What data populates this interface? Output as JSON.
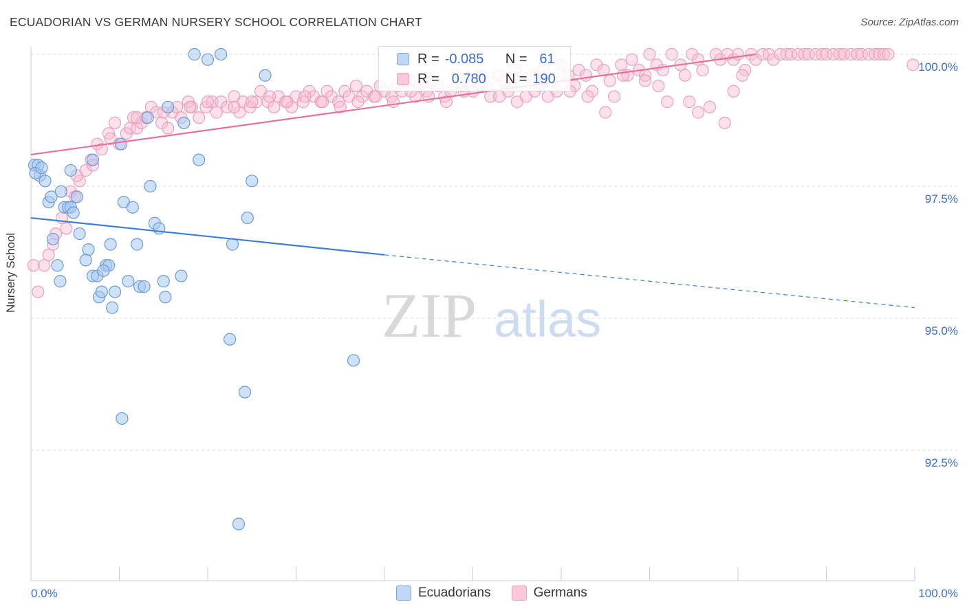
{
  "title": "ECUADORIAN VS GERMAN NURSERY SCHOOL CORRELATION CHART",
  "source": "Source: ZipAtlas.com",
  "watermark": {
    "zip": "ZIP",
    "atlas": "atlas"
  },
  "legend": {
    "r_label": "R =",
    "n_label": "N =",
    "series": [
      {
        "name": "Ecuadorians",
        "r": "-0.085",
        "n": "61",
        "fill": "#a8c8f0",
        "stroke": "#6a9ad8"
      },
      {
        "name": "Germans",
        "r": "0.780",
        "n": "190",
        "fill": "#f8bcd0",
        "stroke": "#e890b0"
      }
    ]
  },
  "chart_data": {
    "type": "scatter",
    "title": "ECUADORIAN VS GERMAN NURSERY SCHOOL CORRELATION CHART",
    "xlabel": "",
    "ylabel": "Nursery School",
    "xlim": [
      0,
      100
    ],
    "ylim": [
      90.2,
      100.5
    ],
    "x_tick_labels": [
      "0.0%",
      "100.0%"
    ],
    "y_ticks": [
      92.5,
      95.0,
      97.5,
      100.0
    ],
    "y_tick_labels": [
      "92.5%",
      "95.0%",
      "97.5%",
      "100.0%"
    ],
    "grid": "horizontal dashed",
    "colors": {
      "ecuadorians": "#3a7fd5",
      "germans": "#e8709a",
      "axis_text": "#3a6fcc"
    },
    "series": [
      {
        "name": "Ecuadorians",
        "trend": {
          "x0": 0,
          "y0": 96.9,
          "x1": 40,
          "y1": 96.2,
          "dashed_to_x": 100,
          "dashed_to_y": 95.2
        },
        "points": [
          [
            0.4,
            97.9
          ],
          [
            0.8,
            97.9
          ],
          [
            1.0,
            97.7
          ],
          [
            1.6,
            97.6
          ],
          [
            2.0,
            97.2
          ],
          [
            2.3,
            97.3
          ],
          [
            3.4,
            97.4
          ],
          [
            3.8,
            97.1
          ],
          [
            4.2,
            97.1
          ],
          [
            5.2,
            97.3
          ],
          [
            2.5,
            96.5
          ],
          [
            3.0,
            96.0
          ],
          [
            3.3,
            95.7
          ],
          [
            4.5,
            97.1
          ],
          [
            4.8,
            97.0
          ],
          [
            5.5,
            96.6
          ],
          [
            6.5,
            96.3
          ],
          [
            7.0,
            95.8
          ],
          [
            7.5,
            95.8
          ],
          [
            7.7,
            95.4
          ],
          [
            8.0,
            95.5
          ],
          [
            8.5,
            96.0
          ],
          [
            8.8,
            96.0
          ],
          [
            9.0,
            96.4
          ],
          [
            9.2,
            95.2
          ],
          [
            9.5,
            95.5
          ],
          [
            10.2,
            98.3
          ],
          [
            10.5,
            97.2
          ],
          [
            11.0,
            95.7
          ],
          [
            11.5,
            97.1
          ],
          [
            12.0,
            96.4
          ],
          [
            12.3,
            95.6
          ],
          [
            12.8,
            95.6
          ],
          [
            13.5,
            97.5
          ],
          [
            14.0,
            96.8
          ],
          [
            14.5,
            96.7
          ],
          [
            15.0,
            95.7
          ],
          [
            15.2,
            95.4
          ],
          [
            15.5,
            99.0
          ],
          [
            17.0,
            95.8
          ],
          [
            17.3,
            98.7
          ],
          [
            18.5,
            100.0
          ],
          [
            19.0,
            98.0
          ],
          [
            20.0,
            99.9
          ],
          [
            21.5,
            100.0
          ],
          [
            22.5,
            94.6
          ],
          [
            22.8,
            96.4
          ],
          [
            23.5,
            91.1
          ],
          [
            24.2,
            93.6
          ],
          [
            24.5,
            96.9
          ],
          [
            25.0,
            97.6
          ],
          [
            26.5,
            99.6
          ],
          [
            36.5,
            94.2
          ],
          [
            10.3,
            93.1
          ],
          [
            6.2,
            96.1
          ],
          [
            4.5,
            97.8
          ],
          [
            8.2,
            95.9
          ],
          [
            13.2,
            98.8
          ],
          [
            0.5,
            97.75
          ],
          [
            1.2,
            97.85
          ],
          [
            7.0,
            98.0
          ]
        ]
      },
      {
        "name": "Germans",
        "trend": {
          "x0": 0,
          "y0": 98.1,
          "x1": 82,
          "y1": 100.0
        },
        "points": [
          [
            0.3,
            96.0
          ],
          [
            0.8,
            95.5
          ],
          [
            1.5,
            96.0
          ],
          [
            2.0,
            96.2
          ],
          [
            2.5,
            96.4
          ],
          [
            2.8,
            96.6
          ],
          [
            3.5,
            96.9
          ],
          [
            4.0,
            96.7
          ],
          [
            4.5,
            97.4
          ],
          [
            5.0,
            97.3
          ],
          [
            5.5,
            97.6
          ],
          [
            5.2,
            97.7
          ],
          [
            6.2,
            97.8
          ],
          [
            6.8,
            98.0
          ],
          [
            7.0,
            97.9
          ],
          [
            7.5,
            98.3
          ],
          [
            8.0,
            98.2
          ],
          [
            8.8,
            98.5
          ],
          [
            9.0,
            98.4
          ],
          [
            9.5,
            98.7
          ],
          [
            10.0,
            98.3
          ],
          [
            10.8,
            98.5
          ],
          [
            11.2,
            98.6
          ],
          [
            11.6,
            98.8
          ],
          [
            12.0,
            98.6
          ],
          [
            12.5,
            98.7
          ],
          [
            13.0,
            98.8
          ],
          [
            13.6,
            99.0
          ],
          [
            14.2,
            98.9
          ],
          [
            14.8,
            98.7
          ],
          [
            15.5,
            98.6
          ],
          [
            16.0,
            98.9
          ],
          [
            16.5,
            99.0
          ],
          [
            17.0,
            98.8
          ],
          [
            17.8,
            99.1
          ],
          [
            18.2,
            99.0
          ],
          [
            19.0,
            98.8
          ],
          [
            19.8,
            99.0
          ],
          [
            20.5,
            99.1
          ],
          [
            21.0,
            98.9
          ],
          [
            21.5,
            99.1
          ],
          [
            22.2,
            99.0
          ],
          [
            23.0,
            99.2
          ],
          [
            23.6,
            98.9
          ],
          [
            24.0,
            99.1
          ],
          [
            24.8,
            99.0
          ],
          [
            25.5,
            99.1
          ],
          [
            26.0,
            99.3
          ],
          [
            26.8,
            99.1
          ],
          [
            27.5,
            99.0
          ],
          [
            28.0,
            99.2
          ],
          [
            28.8,
            99.1
          ],
          [
            29.5,
            99.0
          ],
          [
            30.0,
            99.2
          ],
          [
            30.8,
            99.1
          ],
          [
            31.5,
            99.3
          ],
          [
            32.0,
            99.2
          ],
          [
            32.8,
            99.1
          ],
          [
            33.5,
            99.3
          ],
          [
            34.0,
            99.2
          ],
          [
            34.8,
            99.1
          ],
          [
            35.5,
            99.3
          ],
          [
            36.0,
            99.2
          ],
          [
            36.8,
            99.4
          ],
          [
            37.5,
            99.2
          ],
          [
            38.0,
            99.3
          ],
          [
            38.8,
            99.2
          ],
          [
            39.5,
            99.4
          ],
          [
            40.0,
            99.3
          ],
          [
            40.8,
            99.2
          ],
          [
            41.5,
            99.4
          ],
          [
            42.0,
            99.3
          ],
          [
            42.8,
            99.5
          ],
          [
            43.5,
            99.2
          ],
          [
            44.0,
            99.4
          ],
          [
            44.8,
            99.3
          ],
          [
            45.5,
            99.5
          ],
          [
            46.0,
            99.4
          ],
          [
            46.8,
            99.2
          ],
          [
            47.5,
            99.3
          ],
          [
            48.0,
            99.6
          ],
          [
            48.8,
            99.4
          ],
          [
            49.5,
            99.5
          ],
          [
            50.0,
            99.3
          ],
          [
            50.8,
            99.6
          ],
          [
            51.5,
            99.4
          ],
          [
            52.0,
            99.2
          ],
          [
            52.8,
            99.6
          ],
          [
            53.5,
            99.5
          ],
          [
            54.0,
            99.3
          ],
          [
            54.8,
            99.7
          ],
          [
            55.5,
            99.5
          ],
          [
            56.0,
            99.2
          ],
          [
            56.8,
            99.6
          ],
          [
            57.5,
            99.4
          ],
          [
            58.0,
            99.7
          ],
          [
            58.8,
            99.5
          ],
          [
            59.5,
            99.3
          ],
          [
            60.0,
            99.8
          ],
          [
            60.8,
            99.6
          ],
          [
            61.5,
            99.4
          ],
          [
            62.0,
            99.7
          ],
          [
            62.8,
            99.6
          ],
          [
            63.5,
            99.3
          ],
          [
            64.0,
            99.8
          ],
          [
            64.8,
            99.7
          ],
          [
            65.5,
            99.5
          ],
          [
            66.0,
            99.2
          ],
          [
            66.8,
            99.8
          ],
          [
            67.5,
            99.6
          ],
          [
            68.0,
            99.9
          ],
          [
            68.8,
            99.7
          ],
          [
            69.5,
            99.6
          ],
          [
            70.0,
            100.0
          ],
          [
            70.8,
            99.8
          ],
          [
            71.5,
            99.7
          ],
          [
            72.0,
            99.1
          ],
          [
            72.5,
            100.0
          ],
          [
            73.5,
            99.8
          ],
          [
            74.0,
            99.6
          ],
          [
            74.8,
            100.0
          ],
          [
            75.5,
            99.9
          ],
          [
            76.0,
            99.7
          ],
          [
            76.8,
            99.0
          ],
          [
            77.5,
            100.0
          ],
          [
            78.0,
            99.9
          ],
          [
            78.8,
            100.0
          ],
          [
            79.5,
            99.9
          ],
          [
            80.0,
            100.0
          ],
          [
            80.8,
            99.7
          ],
          [
            81.5,
            100.0
          ],
          [
            82.0,
            99.9
          ],
          [
            82.8,
            100.0
          ],
          [
            83.5,
            100.0
          ],
          [
            84.0,
            99.9
          ],
          [
            84.8,
            100.0
          ],
          [
            85.5,
            100.0
          ],
          [
            86.0,
            100.0
          ],
          [
            86.8,
            100.0
          ],
          [
            87.5,
            100.0
          ],
          [
            88.0,
            100.0
          ],
          [
            88.8,
            100.0
          ],
          [
            89.5,
            100.0
          ],
          [
            90.0,
            100.0
          ],
          [
            90.8,
            100.0
          ],
          [
            91.5,
            100.0
          ],
          [
            92.0,
            100.0
          ],
          [
            92.8,
            100.0
          ],
          [
            93.5,
            100.0
          ],
          [
            94.0,
            100.0
          ],
          [
            94.8,
            100.0
          ],
          [
            95.5,
            100.0
          ],
          [
            96.0,
            100.0
          ],
          [
            96.5,
            100.0
          ],
          [
            97.0,
            100.0
          ],
          [
            99.8,
            99.8
          ],
          [
            80.5,
            99.6
          ],
          [
            79.5,
            99.3
          ],
          [
            78.5,
            98.7
          ],
          [
            75.5,
            98.9
          ],
          [
            74.5,
            99.1
          ],
          [
            71.0,
            99.4
          ],
          [
            69.5,
            99.5
          ],
          [
            67.0,
            99.6
          ],
          [
            65.0,
            98.9
          ],
          [
            63.0,
            99.2
          ],
          [
            61.0,
            99.3
          ],
          [
            58.5,
            99.2
          ],
          [
            57.0,
            99.3
          ],
          [
            55.0,
            99.1
          ],
          [
            53.0,
            99.2
          ],
          [
            51.0,
            99.4
          ],
          [
            49.0,
            99.3
          ],
          [
            47.0,
            99.1
          ],
          [
            45.0,
            99.2
          ],
          [
            43.0,
            99.3
          ],
          [
            41.0,
            99.1
          ],
          [
            39.0,
            99.2
          ],
          [
            37.0,
            99.1
          ],
          [
            35.0,
            99.0
          ],
          [
            33.0,
            99.1
          ],
          [
            31.0,
            99.2
          ],
          [
            29.0,
            99.1
          ],
          [
            27.0,
            99.2
          ],
          [
            25.0,
            99.1
          ],
          [
            23.0,
            99.0
          ],
          [
            20.0,
            99.1
          ],
          [
            18.0,
            99.0
          ],
          [
            15.0,
            98.9
          ],
          [
            12.0,
            98.8
          ]
        ]
      }
    ]
  }
}
